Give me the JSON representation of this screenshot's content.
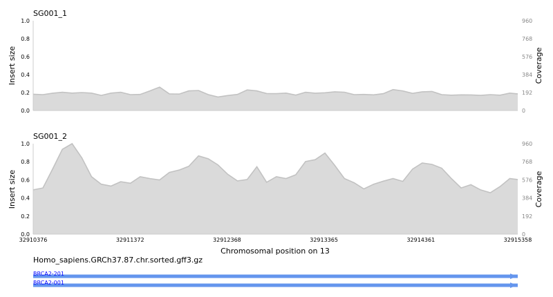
{
  "chart_data": [
    {
      "type": "area",
      "title": "SG001_1",
      "ylabel": "Insert size",
      "y2label": "Coverage",
      "ylim": [
        0,
        1
      ],
      "y2lim": [
        0,
        960
      ],
      "yticks": [
        "0.0",
        "0.2",
        "0.4",
        "0.6",
        "0.8",
        "1.0"
      ],
      "y2ticks": [
        "0",
        "192",
        "384",
        "576",
        "768",
        "960"
      ],
      "xlim": [
        32910376,
        32915358
      ],
      "series": [
        {
          "x": [
            32910376,
            32910476,
            32910576,
            32910676,
            32910776,
            32910876,
            32910976,
            32911076,
            32911176,
            32911276,
            32911376,
            32911476,
            32911576,
            32911676,
            32911776,
            32911876,
            32911976,
            32912076,
            32912176,
            32912276,
            32912376,
            32912476,
            32912576,
            32912676,
            32912776,
            32912876,
            32912976,
            32913076,
            32913176,
            32913276,
            32913376,
            32913476,
            32913576,
            32913676,
            32913776,
            32913876,
            32913976,
            32914076,
            32914176,
            32914276,
            32914376,
            32914476,
            32914576,
            32914676,
            32914776,
            32914876,
            32914976,
            32915076,
            32915176,
            32915276,
            32915358
          ],
          "y": [
            174,
            170,
            185,
            195,
            186,
            192,
            186,
            162,
            186,
            195,
            170,
            172,
            210,
            250,
            178,
            176,
            210,
            214,
            170,
            145,
            160,
            172,
            220,
            210,
            182,
            180,
            186,
            165,
            195,
            185,
            190,
            200,
            196,
            170,
            172,
            168,
            180,
            224,
            210,
            183,
            200,
            204,
            170,
            164,
            168,
            167,
            162,
            170,
            164,
            186,
            178
          ]
        }
      ]
    },
    {
      "type": "area",
      "title": "SG001_2",
      "ylabel": "Insert size",
      "y2label": "Coverage",
      "ylim": [
        0,
        1
      ],
      "y2lim": [
        0,
        960
      ],
      "yticks": [
        "0.0",
        "0.2",
        "0.4",
        "0.6",
        "0.8",
        "1.0"
      ],
      "y2ticks": [
        "0",
        "192",
        "384",
        "576",
        "768",
        "960"
      ],
      "xlabel": "Chromosomal position on 13",
      "xticks": [
        "32910376",
        "32911372",
        "32912368",
        "32913365",
        "32914361",
        "32915358"
      ],
      "xlim": [
        32910376,
        32915358
      ],
      "series": [
        {
          "x": [
            32910376,
            32910476,
            32910576,
            32910676,
            32910776,
            32910876,
            32910976,
            32911076,
            32911176,
            32911276,
            32911376,
            32911476,
            32911576,
            32911676,
            32911776,
            32911876,
            32911976,
            32912076,
            32912176,
            32912276,
            32912376,
            32912476,
            32912576,
            32912676,
            32912776,
            32912876,
            32912976,
            32913076,
            32913176,
            32913276,
            32913376,
            32913476,
            32913576,
            32913676,
            32913776,
            32913876,
            32913976,
            32914076,
            32914176,
            32914276,
            32914376,
            32914476,
            32914576,
            32914676,
            32914776,
            32914876,
            32914976,
            32915076,
            32915176,
            32915276,
            32915358
          ],
          "y": [
            470,
            490,
            690,
            900,
            960,
            810,
            610,
            530,
            510,
            556,
            540,
            610,
            590,
            575,
            655,
            680,
            720,
            830,
            800,
            735,
            635,
            565,
            580,
            715,
            550,
            610,
            590,
            630,
            770,
            790,
            860,
            730,
            590,
            545,
            480,
            530,
            562,
            590,
            560,
            690,
            755,
            740,
            700,
            590,
            490,
            525,
            470,
            440,
            505,
            590,
            580
          ]
        }
      ]
    }
  ],
  "track": {
    "title": "Homo_sapiens.GRCh37.87.chr.sorted.gff3.gz",
    "color": "#6495ed",
    "label_color": "#0000ff",
    "features": [
      {
        "name": "BRCA2-201",
        "start": 32910376,
        "end": 32915358
      },
      {
        "name": "BRCA2-001",
        "start": 32910376,
        "end": 32915358
      }
    ]
  },
  "colors": {
    "fill": "#dadada",
    "line": "#c2c2c2",
    "axis": "#cccccc",
    "right_tick_text": "#888888"
  }
}
